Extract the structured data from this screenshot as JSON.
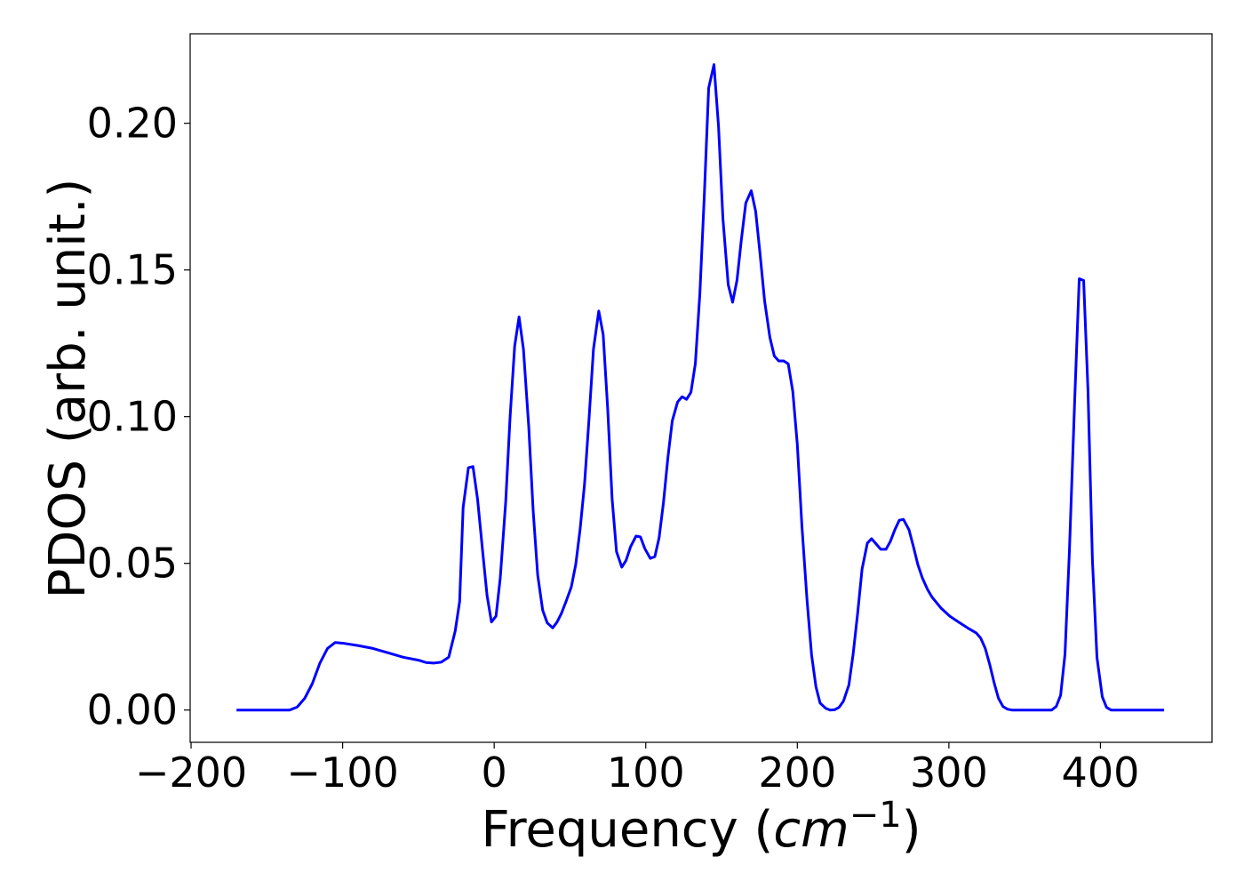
{
  "chart_data": {
    "type": "line",
    "ylabel": "PDOS (arb. unit.)",
    "xlabel": [
      "Frequency (",
      "cm",
      "−1",
      ")"
    ],
    "color": "#0000ff",
    "x": [
      -170,
      -135,
      -130,
      -125,
      -120,
      -115,
      -110,
      -105,
      -100,
      -90,
      -80,
      -70,
      -60,
      -50,
      -45,
      -40,
      -35,
      -30,
      -25.7,
      -22.8,
      -20.5,
      -17,
      -14,
      -11,
      -7.6,
      -4.7,
      -1.8,
      1.2,
      4,
      7.6,
      10.5,
      13.5,
      16.4,
      19.3,
      22.8,
      25.7,
      28.7,
      32,
      35,
      38.6,
      41.5,
      44.4,
      47.4,
      50.9,
      53.8,
      56.7,
      59.6,
      62.6,
      65.5,
      69,
      71.9,
      74.9,
      77.8,
      80.7,
      84.2,
      87,
      90,
      93.6,
      96.5,
      99.4,
      103,
      106,
      108.8,
      111.7,
      114.6,
      117.5,
      121,
      124,
      126.9,
      129.8,
      132.7,
      135.7,
      138.6,
      141.5,
      145,
      148,
      150.9,
      154.4,
      157.3,
      160.2,
      163,
      166,
      169.6,
      172.5,
      175.4,
      178.4,
      181.9,
      184.8,
      187.7,
      191,
      194,
      197,
      200,
      203,
      206.4,
      209.4,
      212.3,
      215,
      218.7,
      221.6,
      224.6,
      227.5,
      230.4,
      234,
      236.8,
      239.8,
      242.7,
      246.2,
      249,
      252,
      255,
      258.5,
      261.4,
      264.3,
      267.3,
      270,
      273.7,
      276.6,
      279.5,
      282.5,
      286,
      289,
      294.7,
      300.6,
      306.4,
      312.3,
      318,
      321,
      324,
      327,
      329.8,
      332.7,
      335.7,
      338.6,
      341.5,
      367.8,
      370.8,
      373.7,
      376.6,
      379.5,
      383,
      386,
      388.9,
      391.8,
      394.7,
      397.7,
      401.2,
      404,
      407,
      442
    ],
    "values": [
      0,
      0,
      0.001,
      0.004,
      0.009,
      0.016,
      0.021,
      0.023,
      0.0228,
      0.022,
      0.021,
      0.0195,
      0.018,
      0.017,
      0.0162,
      0.016,
      0.0163,
      0.018,
      0.027,
      0.037,
      0.069,
      0.0826,
      0.083,
      0.072,
      0.054,
      0.039,
      0.03,
      0.032,
      0.045,
      0.071,
      0.1,
      0.124,
      0.134,
      0.123,
      0.0965,
      0.068,
      0.046,
      0.034,
      0.0297,
      0.028,
      0.03,
      0.033,
      0.037,
      0.042,
      0.0496,
      0.0617,
      0.077,
      0.0995,
      0.123,
      0.136,
      0.128,
      0.1026,
      0.072,
      0.054,
      0.0487,
      0.051,
      0.0557,
      0.0593,
      0.059,
      0.055,
      0.0517,
      0.0523,
      0.0587,
      0.0708,
      0.086,
      0.0986,
      0.105,
      0.1068,
      0.1059,
      0.1083,
      0.118,
      0.142,
      0.175,
      0.212,
      0.22,
      0.199,
      0.1676,
      0.145,
      0.139,
      0.1465,
      0.16,
      0.1728,
      0.177,
      0.17,
      0.1555,
      0.1395,
      0.127,
      0.1207,
      0.119,
      0.119,
      0.118,
      0.1086,
      0.0905,
      0.063,
      0.0375,
      0.0188,
      0.0079,
      0.0024,
      0.0006,
      0,
      0.0001,
      0.0009,
      0.003,
      0.0085,
      0.019,
      0.033,
      0.048,
      0.0569,
      0.0584,
      0.0566,
      0.0548,
      0.0548,
      0.0575,
      0.0614,
      0.0647,
      0.065,
      0.0614,
      0.0557,
      0.0496,
      0.045,
      0.041,
      0.0384,
      0.0348,
      0.032,
      0.03,
      0.028,
      0.0263,
      0.0245,
      0.021,
      0.0154,
      0.0094,
      0.004,
      0.0012,
      0.0003,
      0,
      0,
      0.0012,
      0.005,
      0.019,
      0.054,
      0.1056,
      0.147,
      0.1464,
      0.1086,
      0.051,
      0.0179,
      0.0045,
      0.0009,
      0,
      0
    ],
    "xlim": [
      -200.6,
      473.6
    ],
    "ylim": [
      -0.011,
      0.2305
    ],
    "xticks": [
      {
        "value": -200,
        "label": "−200"
      },
      {
        "value": -100,
        "label": "−100"
      },
      0,
      100,
      200,
      300,
      400
    ],
    "yticks": [
      {
        "value": 0,
        "label": "0.00"
      },
      0.05,
      {
        "value": 0.1,
        "label": "0.10"
      },
      0.15,
      {
        "value": 0.2,
        "label": "0.20"
      }
    ]
  }
}
